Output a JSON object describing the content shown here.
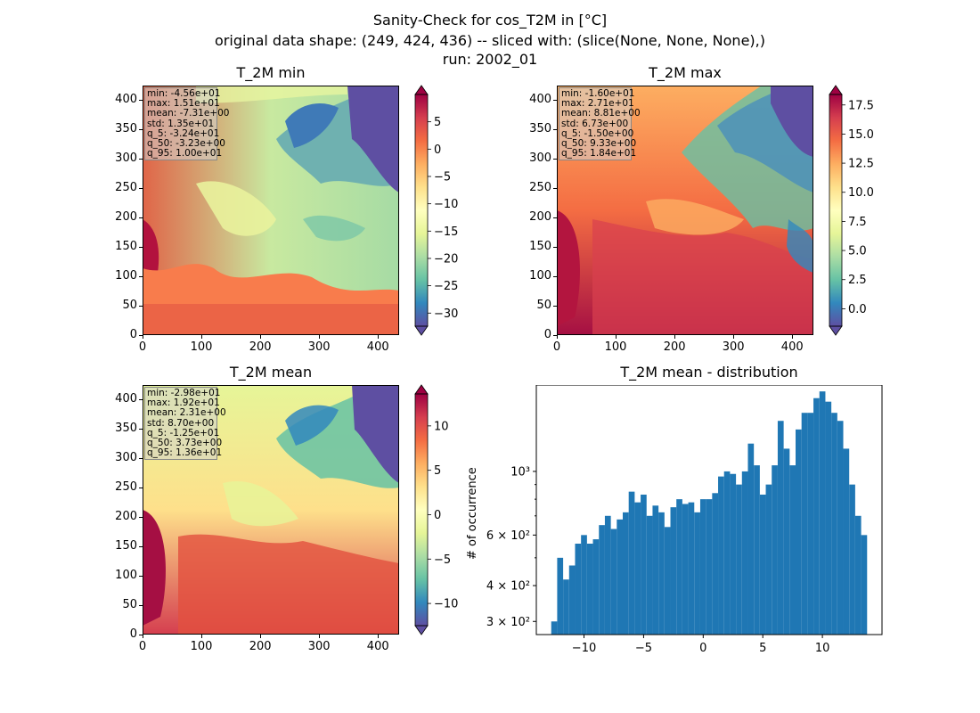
{
  "figure": {
    "title_lines": [
      "Sanity-Check for cos_T2M in [°C]",
      "original data shape: (249, 424, 436) -- sliced with: (slice(None, None, None),)",
      "run: 2002_01"
    ]
  },
  "colors": {
    "hist_bar": "#1f77b4",
    "colormap": "Spectral_r",
    "colormap_stops": [
      "#5e4fa2",
      "#3288bd",
      "#66c2a5",
      "#abdda4",
      "#e6f598",
      "#ffffbf",
      "#fee08b",
      "#fdae61",
      "#f46d43",
      "#d53e4f",
      "#9e0142"
    ]
  },
  "map_axes": {
    "x_ticks": [
      "0",
      "100",
      "200",
      "300",
      "400"
    ],
    "y_ticks": [
      "0",
      "50",
      "100",
      "150",
      "200",
      "250",
      "300",
      "350",
      "400"
    ],
    "x_lim": [
      0,
      436
    ],
    "y_lim": [
      0,
      424
    ]
  },
  "panels": {
    "min": {
      "title": "T_2M min",
      "stats": [
        "min: -4.56e+01",
        "max: 1.51e+01",
        "mean: -7.31e+00",
        "std: 1.35e+01",
        "q_5: -3.24e+01",
        "q_50: -3.23e+00",
        "q_95: 1.00e+01"
      ],
      "cbar_range": [
        -32.4,
        10.0
      ],
      "cbar_ticks": [
        "5",
        "0",
        "−5",
        "−10",
        "−15",
        "−20",
        "−25",
        "−30"
      ],
      "cbar_tick_values": [
        5,
        0,
        -5,
        -10,
        -15,
        -20,
        -25,
        -30
      ]
    },
    "max": {
      "title": "T_2M max",
      "stats": [
        "min: -1.60e+01",
        "max: 2.71e+01",
        "mean: 8.81e+00",
        "std: 6.73e+00",
        "q_5: -1.50e+00",
        "q_50: 9.33e+00",
        "q_95: 1.84e+01"
      ],
      "cbar_range": [
        -1.5,
        18.4
      ],
      "cbar_ticks": [
        "17.5",
        "15.0",
        "12.5",
        "10.0",
        "7.5",
        "5.0",
        "2.5",
        "0.0"
      ],
      "cbar_tick_values": [
        17.5,
        15.0,
        12.5,
        10.0,
        7.5,
        5.0,
        2.5,
        0.0
      ]
    },
    "mean": {
      "title": "T_2M mean",
      "stats": [
        "min: -2.98e+01",
        "max: 1.92e+01",
        "mean: 2.31e+00",
        "std: 8.70e+00",
        "q_5: -1.25e+01",
        "q_50: 3.73e+00",
        "q_95: 1.36e+01"
      ],
      "cbar_range": [
        -12.5,
        13.6
      ],
      "cbar_ticks": [
        "10",
        "5",
        "0",
        "−5",
        "−10"
      ],
      "cbar_tick_values": [
        10,
        5,
        0,
        -5,
        -10
      ]
    }
  },
  "chart_data": {
    "type": "bar",
    "title": "T_2M mean - distribution",
    "xlabel": "",
    "ylabel": "# of occurrence",
    "y_scale": "log",
    "xlim": [
      -14,
      15
    ],
    "ylim": [
      270,
      2000
    ],
    "x_ticks": [
      "−10",
      "−5",
      "0",
      "5",
      "10"
    ],
    "x_tick_values": [
      -10,
      -5,
      0,
      5,
      10
    ],
    "y_tick_labels": [
      "3 × 10²",
      "4 × 10²",
      "6 × 10²",
      "10³"
    ],
    "y_tick_values": [
      300,
      400,
      600,
      1000
    ],
    "bins": {
      "x": [
        -12.5,
        -12.0,
        -11.5,
        -11.0,
        -10.5,
        -10.0,
        -9.5,
        -9.0,
        -8.5,
        -8.0,
        -7.5,
        -7.0,
        -6.5,
        -6.0,
        -5.5,
        -5.0,
        -4.5,
        -4.0,
        -3.5,
        -3.0,
        -2.5,
        -2.0,
        -1.5,
        -1.0,
        -0.5,
        0.0,
        0.5,
        1.0,
        1.5,
        2.0,
        2.5,
        3.0,
        3.5,
        4.0,
        4.5,
        5.0,
        5.5,
        6.0,
        6.5,
        7.0,
        7.5,
        8.0,
        8.5,
        9.0,
        9.5,
        10.0,
        10.5,
        11.0,
        11.5,
        12.0,
        12.5,
        13.0,
        13.5
      ],
      "y": [
        300,
        500,
        420,
        470,
        560,
        600,
        560,
        580,
        650,
        700,
        630,
        680,
        720,
        850,
        780,
        830,
        700,
        760,
        720,
        640,
        750,
        800,
        770,
        780,
        720,
        800,
        800,
        840,
        960,
        1000,
        980,
        900,
        1000,
        1250,
        1050,
        830,
        900,
        1050,
        1500,
        1200,
        1050,
        1400,
        1600,
        1600,
        1800,
        1900,
        1750,
        1600,
        1500,
        1200,
        900,
        700,
        600
      ]
    }
  }
}
